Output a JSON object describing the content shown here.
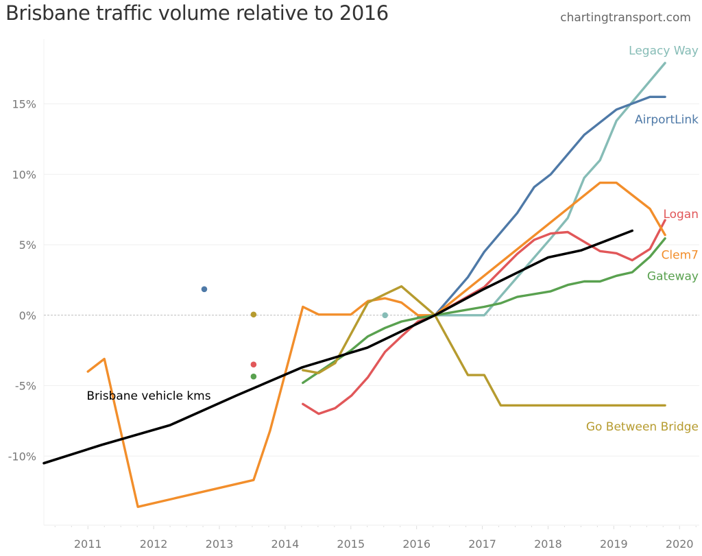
{
  "header": {
    "title": "Brisbane traffic volume relative to 2016",
    "source": "chartingtransport.com"
  },
  "chart_data": {
    "type": "line",
    "title": "Brisbane traffic volume relative to 2016",
    "xlabel": "",
    "ylabel": "",
    "xlim": [
      2010.33,
      2020.3
    ],
    "ylim": [
      -14.9,
      19.6
    ],
    "x_ticks": [
      2011,
      2012,
      2013,
      2014,
      2015,
      2016,
      2017,
      2018,
      2019,
      2020
    ],
    "x_tick_labels": [
      "2011",
      "2012",
      "2013",
      "2014",
      "2015",
      "2016",
      "2017",
      "2018",
      "2019",
      "2020"
    ],
    "y_ticks": [
      -10,
      -5,
      0,
      5,
      10,
      15
    ],
    "y_tick_labels": [
      "-10%",
      "-5%",
      "0%",
      "5%",
      "10%",
      "15%"
    ],
    "grid": true,
    "zero_line": "dashed",
    "series": [
      {
        "name": "Legacy Way",
        "label": "Legacy Way",
        "color": "#86bcb6",
        "points": [
          [
            2016.28,
            0
          ],
          [
            2017.03,
            0
          ],
          [
            2018.04,
            5.45
          ],
          [
            2018.3,
            6.9
          ],
          [
            2018.55,
            9.75
          ],
          [
            2018.79,
            11.0
          ],
          [
            2019.04,
            13.8
          ],
          [
            2019.78,
            17.9
          ]
        ],
        "dots": [
          [
            2015.52,
            0
          ]
        ],
        "label_pos": [
          2019.88,
          18.8
        ]
      },
      {
        "name": "AirportLink",
        "label": "AirportLink",
        "color": "#4e79a7",
        "points": [
          [
            2016.02,
            -0.15
          ],
          [
            2016.28,
            0
          ],
          [
            2016.78,
            2.7
          ],
          [
            2017.03,
            4.5
          ],
          [
            2017.53,
            7.25
          ],
          [
            2017.79,
            9.1
          ],
          [
            2018.04,
            10.0
          ],
          [
            2018.55,
            12.8
          ],
          [
            2019.04,
            14.6
          ],
          [
            2019.55,
            15.5
          ],
          [
            2019.78,
            15.5
          ]
        ],
        "dots": [
          [
            2012.77,
            1.85
          ]
        ],
        "label_pos": [
          2019.88,
          13.9
        ]
      },
      {
        "name": "Logan",
        "label": "Logan",
        "color": "#e15759",
        "points": [
          [
            2014.27,
            -6.3
          ],
          [
            2014.51,
            -7.0
          ],
          [
            2014.76,
            -6.6
          ],
          [
            2015.01,
            -5.7
          ],
          [
            2015.26,
            -4.4
          ],
          [
            2015.52,
            -2.6
          ],
          [
            2015.77,
            -1.5
          ],
          [
            2016.02,
            -0.45
          ],
          [
            2016.28,
            0
          ],
          [
            2017.03,
            2.0
          ],
          [
            2017.53,
            4.35
          ],
          [
            2017.79,
            5.35
          ],
          [
            2018.04,
            5.8
          ],
          [
            2018.3,
            5.9
          ],
          [
            2018.79,
            4.55
          ],
          [
            2019.04,
            4.4
          ],
          [
            2019.28,
            3.9
          ],
          [
            2019.55,
            4.7
          ],
          [
            2019.78,
            6.75
          ]
        ],
        "dots": [
          [
            2013.52,
            -3.5
          ]
        ],
        "label_pos": [
          2019.88,
          7.2
        ]
      },
      {
        "name": "Clem7",
        "label": "Clem7",
        "color": "#f28e2b",
        "points": [
          [
            2011.0,
            -4.0
          ],
          [
            2011.25,
            -3.1
          ],
          [
            2011.76,
            -13.6
          ],
          [
            2013.52,
            -11.7
          ],
          [
            2013.77,
            -8.2
          ],
          [
            2014.27,
            0.6
          ],
          [
            2014.51,
            0.05
          ],
          [
            2015.0,
            0.05
          ],
          [
            2015.26,
            1.0
          ],
          [
            2015.52,
            1.2
          ],
          [
            2015.77,
            0.9
          ],
          [
            2016.02,
            0
          ],
          [
            2016.28,
            0
          ],
          [
            2018.79,
            9.4
          ],
          [
            2019.04,
            9.4
          ],
          [
            2019.55,
            7.55
          ],
          [
            2019.78,
            5.7
          ]
        ],
        "dots": [],
        "label_pos": [
          2019.88,
          4.3
        ]
      },
      {
        "name": "Gateway",
        "label": "Gateway",
        "color": "#59a14f",
        "points": [
          [
            2014.27,
            -4.8
          ],
          [
            2015.0,
            -2.5
          ],
          [
            2015.26,
            -1.5
          ],
          [
            2015.52,
            -0.9
          ],
          [
            2015.77,
            -0.45
          ],
          [
            2016.02,
            -0.2
          ],
          [
            2016.28,
            0
          ],
          [
            2017.03,
            0.6
          ],
          [
            2017.28,
            0.85
          ],
          [
            2017.53,
            1.3
          ],
          [
            2018.04,
            1.7
          ],
          [
            2018.3,
            2.15
          ],
          [
            2018.55,
            2.4
          ],
          [
            2018.79,
            2.4
          ],
          [
            2019.04,
            2.8
          ],
          [
            2019.28,
            3.05
          ],
          [
            2019.55,
            4.15
          ],
          [
            2019.78,
            5.45
          ]
        ],
        "dots": [
          [
            2013.52,
            -4.35
          ]
        ],
        "label_pos": [
          2019.88,
          2.8
        ]
      },
      {
        "name": "Go Between Bridge",
        "label": "Go Between Bridge",
        "color": "#b69b2f",
        "points": [
          [
            2014.27,
            -3.9
          ],
          [
            2014.51,
            -4.1
          ],
          [
            2014.76,
            -3.4
          ],
          [
            2015.26,
            0.9
          ],
          [
            2015.52,
            1.5
          ],
          [
            2015.77,
            2.05
          ],
          [
            2016.28,
            0
          ],
          [
            2016.78,
            -4.25
          ],
          [
            2017.03,
            -4.25
          ],
          [
            2017.28,
            -6.4
          ],
          [
            2019.78,
            -6.4
          ]
        ],
        "dots": [
          [
            2013.52,
            0.05
          ]
        ],
        "label_pos": [
          2019.88,
          -7.9
        ]
      },
      {
        "name": "Brisbane vehicle kms",
        "label": "Brisbane vehicle kms",
        "color": "#000000",
        "points": [
          [
            2010.33,
            -10.5
          ],
          [
            2011.21,
            -9.2
          ],
          [
            2012.25,
            -7.8
          ],
          [
            2013.26,
            -5.7
          ],
          [
            2014.26,
            -3.7
          ],
          [
            2015.25,
            -2.3
          ],
          [
            2016.28,
            0
          ],
          [
            2017.0,
            1.8
          ],
          [
            2018.0,
            4.1
          ],
          [
            2018.5,
            4.6
          ],
          [
            2019.28,
            6.0
          ]
        ],
        "dots": [],
        "label_pos": [
          2010.98,
          -5.7
        ]
      }
    ]
  }
}
